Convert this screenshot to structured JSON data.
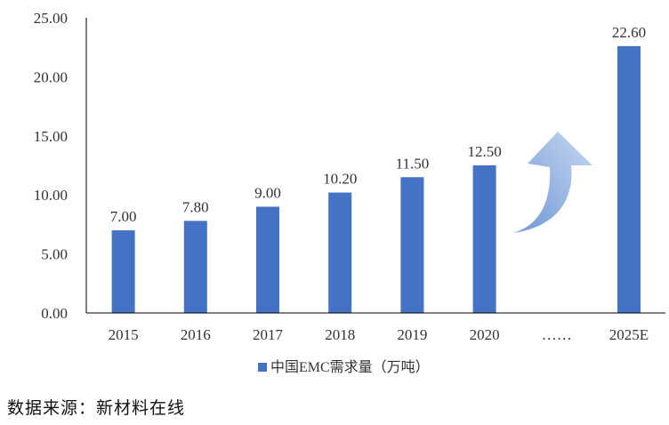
{
  "chart_data": {
    "type": "bar",
    "categories": [
      "2015",
      "2016",
      "2017",
      "2018",
      "2019",
      "2020",
      "……",
      "2025E"
    ],
    "values": [
      7.0,
      7.8,
      9.0,
      10.2,
      11.5,
      12.5,
      null,
      22.6
    ],
    "data_labels": [
      "7.00",
      "7.80",
      "9.00",
      "10.20",
      "11.50",
      "12.50",
      "",
      "22.60"
    ],
    "series": [
      {
        "name": "中国EMC需求量（万吨）",
        "values": [
          7.0,
          7.8,
          9.0,
          10.2,
          11.5,
          12.5,
          null,
          22.6
        ]
      }
    ],
    "y_ticks": [
      "0.00",
      "5.00",
      "10.00",
      "15.00",
      "20.00",
      "25.00"
    ],
    "ylim": [
      0,
      25
    ],
    "grid": false,
    "legend_position": "bottom",
    "annotation": "upward-arrow"
  },
  "colors": {
    "bar": "#4472C4",
    "arrow_light": "#BDD0EE",
    "arrow_dark": "#6F97D6",
    "axis": "#000000"
  },
  "source_note": "数据来源：新材料在线"
}
